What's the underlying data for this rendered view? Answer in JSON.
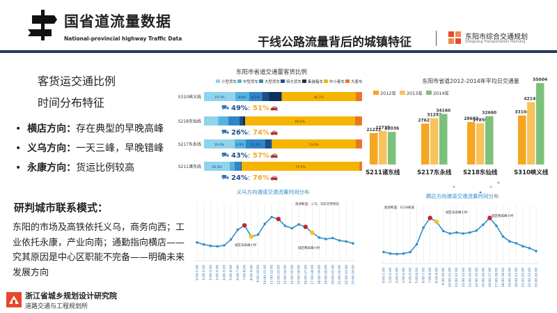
{
  "header": {
    "brand_title": "国省道流量数据",
    "brand_subtitle": "National-provincial highway Traffic Data",
    "slide_title": "干线公路流量背后的城镇特征",
    "org_name": "东阳市综合交通规划",
    "org_name_en": "Dongyang Transportation Planning"
  },
  "left": {
    "heading_line1": "客货运交通比例",
    "heading_line2": "时间分布特征",
    "bullets": [
      {
        "label": "横店方向：",
        "text": "存在典型的早晚高峰"
      },
      {
        "label": "义乌方向：",
        "text": "一天三峰，早晚错峰"
      },
      {
        "label": "永康方向：",
        "text": "货运比例较高"
      }
    ],
    "analysis_title": "研判城市联系模式：",
    "analysis_text": "东阳的市场及高铁依托义乌，商务向西；工业依托永康，产业向南；通勤指向横店——究其原因是中心区职能不完备——明确未来发展方向"
  },
  "footer": {
    "institute": "浙江省城乡规划设计研究院",
    "department": "道路交通与工程规划所"
  },
  "colors": {
    "title_bar": "#1f3864",
    "accent_red": "#e8472b",
    "orange": "#f5a623",
    "green": "#7cc17a",
    "line_blue": "#2e8fc9"
  },
  "chart_data": [
    {
      "id": "composition",
      "type": "bar",
      "orientation": "horizontal-stacked",
      "title": "东阳市省道交通量客货比例",
      "legend": [
        "小型货车",
        "中型货车",
        "大型货车",
        "特大货车",
        "集装箱车",
        "中小客车",
        "大客车"
      ],
      "legend_colors": [
        "#8fd3ec",
        "#56b3de",
        "#2f86c6",
        "#1f4e8c",
        "#0f2f5c",
        "#f5b400",
        "#e87722"
      ],
      "categories": [
        "S310峡义线",
        "S218东仙线",
        "S217东永线",
        "S211诸东线"
      ],
      "series_values": [
        [
          19.7,
          8.8,
          8.2,
          4.5,
          8.0,
          46.7,
          4.1
        ],
        [
          9.0,
          6.3,
          7.1,
          2.1,
          1.5,
          69.5,
          4.5
        ],
        [
          19.4,
          6.9,
          12.3,
          4.2,
          0.2,
          53.0,
          4.0
        ],
        [
          16.3,
          3.0,
          3.9,
          0.6,
          0.0,
          74.5,
          1.7
        ]
      ],
      "segment_labels": [
        [
          "19.7%",
          "8.8%",
          "8.2%",
          "",
          "",
          "46.7%",
          ""
        ],
        [
          "",
          "",
          "",
          "",
          "",
          "69.5%",
          ""
        ],
        [
          "19.4%",
          "6.9%",
          "12.3%",
          "",
          "",
          "53.0%",
          ""
        ],
        [
          "16.3%",
          "",
          "",
          "",
          "",
          "74.5%",
          ""
        ]
      ],
      "freight_share": [
        "49%",
        "26%",
        "43%",
        "24%"
      ],
      "passenger_share": [
        "51%",
        "74%",
        "57%",
        "76%"
      ]
    },
    {
      "id": "aadt",
      "type": "bar",
      "title": "东阳市省道2012-2014年平均日交通量",
      "categories": [
        "S211诸东线",
        "S217东永线",
        "S218东仙线",
        "S310峡义线"
      ],
      "series": [
        {
          "name": "2012年",
          "color": "#f5a623",
          "values": [
            21223,
            27621,
            28682,
            33104
          ]
        },
        {
          "name": "2013年",
          "color": "#f7c35c",
          "values": [
            22715,
            31293,
            27850,
            42149
          ]
        },
        {
          "name": "2014年",
          "color": "#7cc17a",
          "values": [
            22036,
            34160,
            32660,
            55004
          ]
        }
      ],
      "value_labels": [
        [
          "21223",
          "22715",
          "22036"
        ],
        [
          "27621",
          "31293",
          "34160"
        ],
        [
          "28682",
          "27850",
          "32660"
        ],
        [
          "33104",
          "42149",
          "55004"
        ]
      ],
      "ylim": [
        0,
        60000
      ]
    },
    {
      "id": "yiwu",
      "type": "line",
      "title": "义乌方向通道交通流量时间分布",
      "note": "观测断面：义乌、东阳交界附近",
      "annotation": "城区早高峰小时",
      "annotation2": "城区晚高峰小时",
      "x": [
        "0:00-1:00",
        "1:00-2:00",
        "2:00-3:00",
        "3:00-4:00",
        "4:00-5:00",
        "5:00-6:00",
        "6:00-7:00",
        "7:00-8:00",
        "8:00-9:00",
        "9:00-10:00",
        "10:00-11:00",
        "11:00-12:00",
        "12:00-13:00",
        "13:00-14:00",
        "14:00-15:00",
        "15:00-16:00",
        "16:00-17:00",
        "17:00-18:00",
        "18:00-19:00",
        "19:00-20:00",
        "20:00-21:00",
        "21:00-22:00",
        "22:00-23:00",
        "23:00-24:00"
      ],
      "values": [
        26,
        22,
        19,
        18,
        20,
        32,
        52,
        61,
        38,
        42,
        64,
        78,
        74,
        60,
        55,
        63,
        58,
        46,
        36,
        33,
        35,
        30,
        28,
        24
      ],
      "peak_idx": [
        7,
        12,
        16
      ],
      "highlight_idx": [
        8,
        17
      ],
      "ylim": [
        0,
        100
      ]
    },
    {
      "id": "hengdian",
      "type": "line",
      "title": "横店方向通道交通流量时间分布",
      "note": "观测断面：S218横溪",
      "annotation": "城区早高峰小时",
      "annotation2": "城区晚高峰小时",
      "x": [
        "0:00-1:00",
        "1:00-2:00",
        "2:00-3:00",
        "3:00-4:00",
        "4:00-5:00",
        "5:00-6:00",
        "6:00-7:00",
        "7:00-8:00",
        "8:00-9:00",
        "9:00-10:00",
        "10:00-11:00",
        "11:00-12:00",
        "12:00-13:00",
        "13:00-14:00",
        "14:00-15:00",
        "15:00-16:00",
        "16:00-17:00",
        "17:00-18:00",
        "18:00-19:00",
        "19:00-20:00",
        "20:00-21:00",
        "21:00-22:00",
        "22:00-23:00",
        "23:00-24:00"
      ],
      "values": [
        12,
        9,
        8,
        9,
        12,
        28,
        62,
        82,
        74,
        55,
        50,
        52,
        50,
        52,
        56,
        68,
        82,
        66,
        44,
        34,
        30,
        24,
        20,
        14
      ],
      "peak_idx": [
        7,
        16
      ],
      "highlight_idx": [
        8
      ],
      "ylim": [
        0,
        100
      ]
    }
  ]
}
